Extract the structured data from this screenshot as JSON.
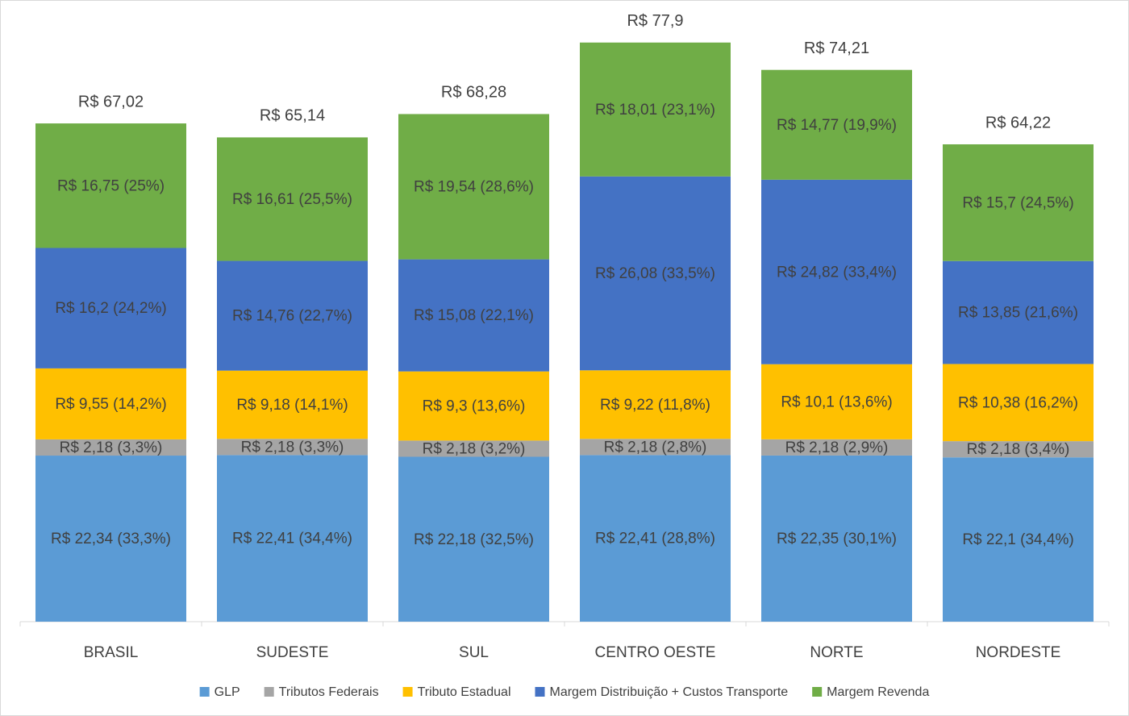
{
  "chart_data": {
    "type": "stacked-bar",
    "categories": [
      "BRASIL",
      "SUDESTE",
      "SUL",
      "CENTRO OESTE",
      "NORTE",
      "NORDESTE"
    ],
    "series": [
      {
        "name": "GLP",
        "color": "#5b9bd5",
        "values": [
          22.34,
          22.41,
          22.18,
          22.41,
          22.35,
          22.1
        ],
        "value_labels": [
          "R$ 22,34 (33,3%)",
          "R$ 22,41 (34,4%)",
          "R$ 22,18 (32,5%)",
          "R$ 22,41 (28,8%)",
          "R$ 22,35 (30,1%)",
          "R$ 22,1 (34,4%)"
        ]
      },
      {
        "name": "Tributos Federais",
        "color": "#a5a5a5",
        "values": [
          2.18,
          2.18,
          2.18,
          2.18,
          2.18,
          2.18
        ],
        "value_labels": [
          "R$ 2,18 (3,3%)",
          "R$ 2,18 (3,3%)",
          "R$ 2,18 (3,2%)",
          "R$ 2,18 (2,8%)",
          "R$ 2,18 (2,9%)",
          "R$ 2,18 (3,4%)"
        ]
      },
      {
        "name": "Tributo Estadual",
        "color": "#ffc000",
        "values": [
          9.55,
          9.18,
          9.3,
          9.22,
          10.1,
          10.38
        ],
        "value_labels": [
          "R$ 9,55 (14,2%)",
          "R$ 9,18 (14,1%)",
          "R$ 9,3 (13,6%)",
          "R$ 9,22 (11,8%)",
          "R$ 10,1 (13,6%)",
          "R$ 10,38 (16,2%)"
        ]
      },
      {
        "name": "Margem Distribuição + Custos Transporte",
        "color": "#4472c4",
        "values": [
          16.2,
          14.76,
          15.08,
          26.08,
          24.82,
          13.85
        ],
        "value_labels": [
          "R$ 16,2 (24,2%)",
          "R$ 14,76 (22,7%)",
          "R$ 15,08 (22,1%)",
          "R$ 26,08 (33,5%)",
          "R$ 24,82 (33,4%)",
          "R$ 13,85 (21,6%)"
        ]
      },
      {
        "name": "Margem Revenda",
        "color": "#70ad47",
        "values": [
          16.75,
          16.61,
          19.54,
          18.01,
          14.77,
          15.7
        ],
        "value_labels": [
          "R$ 16,75 (25%)",
          "R$ 16,61 (25,5%)",
          "R$ 19,54 (28,6%)",
          "R$ 18,01 (23,1%)",
          "R$ 14,77 (19,9%)",
          "R$ 15,7 (24,5%)"
        ]
      }
    ],
    "totals": {
      "values": [
        67.02,
        65.14,
        68.28,
        77.9,
        74.21,
        64.22
      ],
      "value_labels": [
        "R$ 67,02",
        "R$ 65,14",
        "R$ 68,28",
        "R$ 77,9",
        "R$ 74,21",
        "R$ 64,22"
      ]
    },
    "legend": "bottom"
  }
}
